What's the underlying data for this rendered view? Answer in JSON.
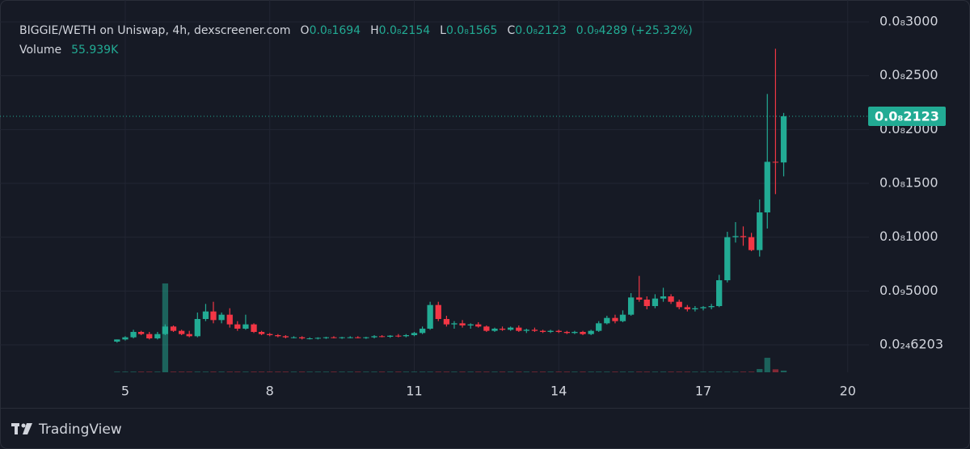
{
  "chart_data": {
    "type": "candlestick",
    "title": "BIGGIE/WETH on Uniswap, 4h, dexscreener.com",
    "ohlc_labels": [
      "O",
      "H",
      "L",
      "C"
    ],
    "ohlc_values": [
      "0.0₈1694",
      "0.0₈2154",
      "0.0₈1565",
      "0.0₈2123"
    ],
    "change": "0.0₉4289 (+25.32%)",
    "volume_label": "Volume",
    "volume_value_label": "55.939K",
    "last_price_label": "0.0₈2123",
    "brand": "TradingView",
    "up_color": "#22ab94",
    "down_color": "#f23645",
    "grid": true,
    "xlim": [
      2.4,
      20.44
    ],
    "xticks": [
      5,
      8,
      11,
      14,
      17,
      20
    ],
    "ylim": [
      -2.55e-10,
      3.203e-09
    ],
    "yticks": [
      {
        "value": 3e-09,
        "label": "0.0₈3000"
      },
      {
        "value": 2.5e-09,
        "label": "0.0₈2500"
      },
      {
        "value": 2e-09,
        "label": "0.0₈2000"
      },
      {
        "value": 1.5e-09,
        "label": "0.0₈1500"
      },
      {
        "value": 1e-09,
        "label": "0.0₈1000"
      },
      {
        "value": 5e-10,
        "label": "0.0₉5000"
      },
      {
        "value": 6.203e-25,
        "label": "0.0₂₄6203"
      }
    ],
    "x": [
      4.83,
      5,
      5.17,
      5.33,
      5.5,
      5.67,
      5.83,
      6,
      6.17,
      6.33,
      6.5,
      6.67,
      6.83,
      7,
      7.17,
      7.33,
      7.5,
      7.67,
      7.83,
      8,
      8.17,
      8.33,
      8.5,
      8.67,
      8.83,
      9,
      9.17,
      9.33,
      9.5,
      9.67,
      9.83,
      10,
      10.17,
      10.33,
      10.5,
      10.67,
      10.83,
      11,
      11.17,
      11.33,
      11.5,
      11.67,
      11.83,
      12,
      12.17,
      12.33,
      12.5,
      12.67,
      12.83,
      13,
      13.17,
      13.33,
      13.5,
      13.67,
      13.83,
      14,
      14.17,
      14.33,
      14.5,
      14.67,
      14.83,
      15,
      15.17,
      15.33,
      15.5,
      15.67,
      15.83,
      16,
      16.17,
      16.33,
      16.5,
      16.67,
      16.83,
      17,
      17.17,
      17.33,
      17.5,
      17.67,
      17.83,
      18,
      18.17,
      18.33,
      18.5,
      18.67
    ],
    "open": [
      3e-11,
      5e-11,
      7e-11,
      1.2e-10,
      1e-10,
      6e-11,
      1e-10,
      1.7e-10,
      1.3e-10,
      1e-10,
      8e-11,
      2.4e-10,
      3.1e-10,
      2.3e-10,
      2.8e-10,
      1.9e-10,
      1.5e-10,
      1.9e-10,
      1.2e-10,
      1e-10,
      9e-11,
      8e-11,
      7e-11,
      7e-11,
      6e-11,
      6e-11,
      6.5e-11,
      7e-11,
      6.5e-11,
      7e-11,
      7e-11,
      6.5e-11,
      7e-11,
      8e-11,
      7.5e-11,
      8.5e-11,
      8e-11,
      9e-11,
      1.1e-10,
      1.5e-10,
      3.7e-10,
      2.4e-10,
      1.9e-10,
      2e-10,
      1.8e-10,
      1.9e-10,
      1.7e-10,
      1.3e-10,
      1.5e-10,
      1.4e-10,
      1.6e-10,
      1.3e-10,
      1.4e-10,
      1.3e-10,
      1.2e-10,
      1.3e-10,
      1.2e-10,
      1.1e-10,
      1.2e-10,
      1e-10,
      1.3e-10,
      2e-10,
      2.5e-10,
      2.2e-10,
      2.8e-10,
      4.4e-10,
      4.2e-10,
      3.6e-10,
      4.3e-10,
      4.5e-10,
      4e-10,
      3.5e-10,
      3.3e-10,
      3.4e-10,
      3.5e-10,
      3.6e-10,
      6e-10,
      1e-09,
      1.01e-09,
      1e-09,
      8.8e-10,
      1.23e-09,
      1.7e-09,
      1.694e-09
    ],
    "high": [
      5e-11,
      8e-11,
      1.4e-10,
      1.3e-10,
      1.2e-10,
      1.2e-10,
      1.9e-10,
      1.8e-10,
      1.4e-10,
      1.3e-10,
      3e-10,
      3.8e-10,
      4e-10,
      3e-10,
      3.4e-10,
      2.2e-10,
      2.8e-10,
      2e-10,
      1.3e-10,
      1.1e-10,
      1e-10,
      9e-11,
      8e-11,
      8e-11,
      7e-11,
      7e-11,
      7.5e-11,
      8e-11,
      7.5e-11,
      8e-11,
      8e-11,
      7.5e-11,
      9e-11,
      9e-11,
      9e-11,
      1e-10,
      1e-10,
      1.2e-10,
      1.7e-10,
      4e-10,
      4e-10,
      2.7e-10,
      2.2e-10,
      2.3e-10,
      2e-10,
      2.1e-10,
      1.8e-10,
      1.6e-10,
      1.7e-10,
      1.7e-10,
      1.8e-10,
      1.5e-10,
      1.6e-10,
      1.4e-10,
      1.4e-10,
      1.4e-10,
      1.3e-10,
      1.3e-10,
      1.3e-10,
      1.4e-10,
      2.2e-10,
      2.7e-10,
      2.8e-10,
      3.2e-10,
      4.8e-10,
      6.4e-10,
      4.5e-10,
      4.7e-10,
      5.3e-10,
      4.7e-10,
      4.2e-10,
      3.7e-10,
      3.6e-10,
      3.6e-10,
      3.8e-10,
      6.5e-10,
      1.05e-09,
      1.14e-09,
      1.1e-09,
      1.04e-09,
      1.35e-09,
      2.33e-09,
      2.75e-09,
      2.154e-09
    ],
    "low": [
      2e-11,
      4e-11,
      6e-11,
      9e-11,
      5e-11,
      5e-11,
      9e-11,
      1.2e-10,
      9e-11,
      7e-11,
      7e-11,
      2.2e-10,
      2e-10,
      2e-10,
      1.6e-10,
      1.3e-10,
      1.4e-10,
      1.1e-10,
      9e-11,
      8e-11,
      7e-11,
      6e-11,
      6e-11,
      5e-11,
      5e-11,
      5e-11,
      5.5e-11,
      6e-11,
      5.5e-11,
      6e-11,
      6e-11,
      5.5e-11,
      6e-11,
      7e-11,
      6.5e-11,
      7e-11,
      7e-11,
      8e-11,
      1e-10,
      1.4e-10,
      2.2e-10,
      1.7e-10,
      1.5e-10,
      1.6e-10,
      1.5e-10,
      1.6e-10,
      1.2e-10,
      1.2e-10,
      1.3e-10,
      1.3e-10,
      1.2e-10,
      1.1e-10,
      1.2e-10,
      1.1e-10,
      1.1e-10,
      1.1e-10,
      1e-10,
      1e-10,
      9e-11,
      9e-11,
      1.2e-10,
      1.9e-10,
      2e-10,
      2.1e-10,
      2.7e-10,
      4e-10,
      3.3e-10,
      3.4e-10,
      4e-10,
      3.8e-10,
      3.3e-10,
      3.1e-10,
      3.1e-10,
      3.2e-10,
      3.3e-10,
      3.5e-10,
      5.8e-10,
      9.5e-10,
      9.2e-10,
      8.7e-10,
      8.2e-10,
      1.08e-09,
      1.4e-09,
      1.565e-09
    ],
    "close": [
      5e-11,
      7e-11,
      1.2e-10,
      1e-10,
      6e-11,
      1e-10,
      1.7e-10,
      1.3e-10,
      1e-10,
      8e-11,
      2.4e-10,
      3.1e-10,
      2.3e-10,
      2.8e-10,
      1.9e-10,
      1.5e-10,
      1.9e-10,
      1.2e-10,
      1e-10,
      9e-11,
      8e-11,
      7e-11,
      7e-11,
      6e-11,
      6e-11,
      6.5e-11,
      7e-11,
      6.5e-11,
      7e-11,
      7e-11,
      6.5e-11,
      7e-11,
      8e-11,
      7.5e-11,
      8.5e-11,
      8e-11,
      9e-11,
      1.1e-10,
      1.5e-10,
      3.7e-10,
      2.4e-10,
      1.9e-10,
      2e-10,
      1.8e-10,
      1.9e-10,
      1.7e-10,
      1.3e-10,
      1.5e-10,
      1.4e-10,
      1.6e-10,
      1.3e-10,
      1.4e-10,
      1.3e-10,
      1.2e-10,
      1.3e-10,
      1.2e-10,
      1.1e-10,
      1.2e-10,
      1e-10,
      1.3e-10,
      2e-10,
      2.5e-10,
      2.2e-10,
      2.8e-10,
      4.4e-10,
      4.2e-10,
      3.6e-10,
      4.3e-10,
      4.5e-10,
      4e-10,
      3.5e-10,
      3.3e-10,
      3.4e-10,
      3.5e-10,
      3.6e-10,
      6e-10,
      1e-09,
      1.01e-09,
      1e-09,
      8.8e-10,
      1.23e-09,
      1.7e-09,
      1.694e-09,
      2.123e-09
    ],
    "volume": [
      20000,
      20000,
      20000,
      20000,
      20000,
      20000,
      3000000,
      20000,
      20000,
      20000,
      20000,
      20000,
      20000,
      20000,
      20000,
      20000,
      20000,
      20000,
      20000,
      20000,
      20000,
      20000,
      20000,
      20000,
      20000,
      20000,
      20000,
      20000,
      20000,
      20000,
      20000,
      20000,
      20000,
      20000,
      20000,
      20000,
      20000,
      20000,
      20000,
      20000,
      20000,
      20000,
      20000,
      20000,
      20000,
      20000,
      20000,
      20000,
      20000,
      20000,
      20000,
      20000,
      20000,
      20000,
      20000,
      20000,
      20000,
      20000,
      20000,
      20000,
      20000,
      20000,
      20000,
      20000,
      20000,
      20000,
      20000,
      20000,
      20000,
      20000,
      20000,
      20000,
      20000,
      20000,
      20000,
      20000,
      20000,
      20000,
      20000,
      20000,
      110000,
      490000,
      100000,
      55939
    ]
  }
}
